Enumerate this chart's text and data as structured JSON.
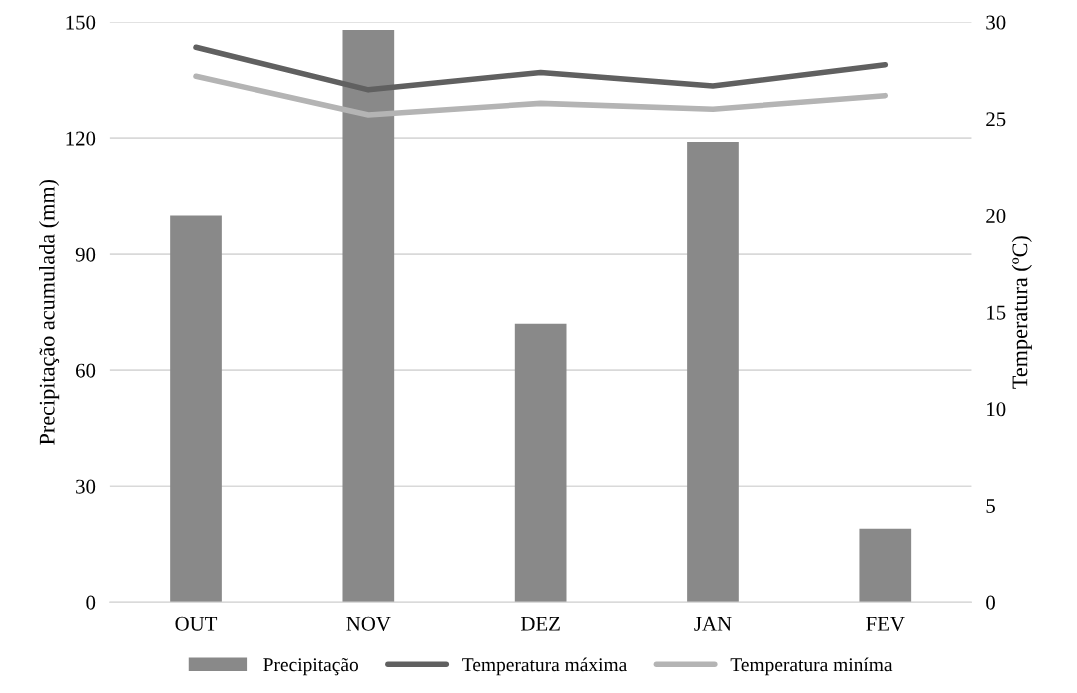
{
  "chart_data": {
    "type": "bar",
    "categories": [
      "OUT",
      "NOV",
      "DEZ",
      "JAN",
      "FEV"
    ],
    "ylabel": "Precipitação acumulada (mm)",
    "y2label": "Temperatura (ºC)",
    "series": [
      {
        "name": "Precipitação",
        "color": "#898989",
        "values": [
          100,
          148,
          72,
          119,
          19
        ]
      },
      {
        "name": "Temperatura máxima",
        "type": "line",
        "axis": "y2",
        "color": "#606060",
        "values": [
          28.7,
          26.5,
          27.4,
          26.7,
          27.8
        ]
      },
      {
        "name": "Temperatura miníma",
        "type": "line",
        "axis": "y2",
        "color": "#b4b4b4",
        "values": [
          27.2,
          25.2,
          25.8,
          25.5,
          26.2
        ]
      }
    ],
    "ylim": [
      0,
      150
    ],
    "yticks": [
      0,
      30,
      60,
      90,
      120,
      150
    ],
    "y2lim": [
      0,
      30
    ],
    "y2ticks": [
      0,
      5,
      10,
      15,
      20,
      25,
      30
    ],
    "grid": "y",
    "legend": "bottom"
  }
}
